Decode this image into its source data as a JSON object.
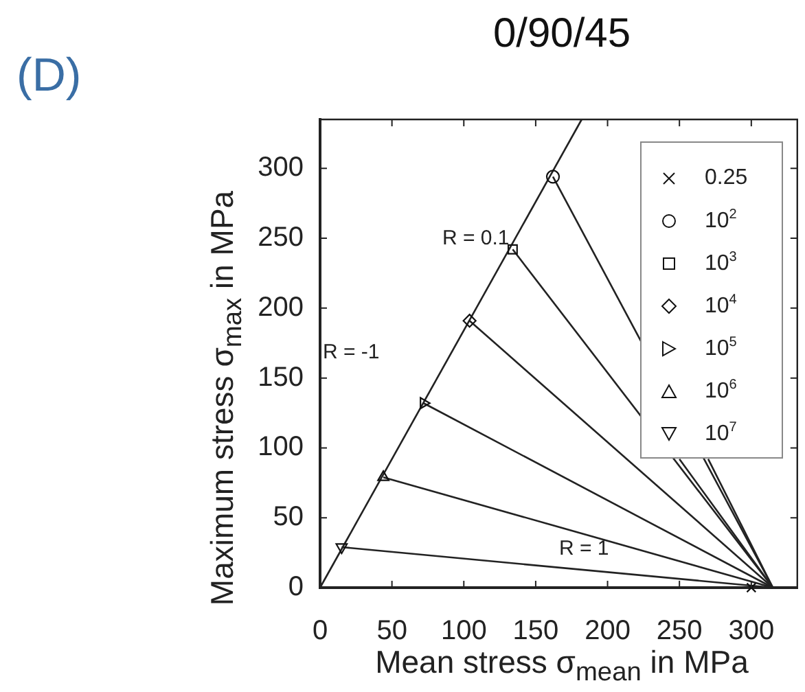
{
  "chart_data": {
    "type": "line",
    "title": "0/90/45",
    "xlabel": "Mean stress σ$_{mean}$ in MPa",
    "ylabel": "Maximum stress σ$_{max}$ in MPa",
    "xlim": [
      0,
      332
    ],
    "ylim": [
      0,
      335
    ],
    "xticks": [
      0,
      50,
      100,
      150,
      200,
      250,
      300
    ],
    "yticks": [
      0,
      50,
      100,
      150,
      200,
      250,
      300
    ],
    "grid": false,
    "legend": "top right",
    "annotations": [
      "(D)",
      "R = 0.1",
      "R = -1",
      "R = 1"
    ],
    "series": [
      {
        "type": "line",
        "color": "#222222",
        "marker": "none",
        "x": [
          0,
          182
        ],
        "values": [
          0,
          335
        ]
      },
      {
        "type": "line",
        "color": "#222222",
        "marker": "none",
        "x": [
          162,
          315
        ],
        "values": [
          294,
          0
        ]
      },
      {
        "type": "line",
        "color": "#222222",
        "marker": "none",
        "x": [
          134,
          315
        ],
        "values": [
          242,
          0
        ]
      },
      {
        "type": "line",
        "color": "#222222",
        "marker": "none",
        "x": [
          104,
          315
        ],
        "values": [
          191,
          0
        ]
      },
      {
        "type": "line",
        "color": "#222222",
        "marker": "none",
        "x": [
          72,
          315
        ],
        "values": [
          132,
          0
        ]
      },
      {
        "type": "line",
        "color": "#222222",
        "marker": "none",
        "x": [
          44,
          315
        ],
        "values": [
          79,
          0
        ]
      },
      {
        "type": "line",
        "color": "#222222",
        "marker": "none",
        "x": [
          15,
          315
        ],
        "values": [
          29,
          0
        ]
      },
      {
        "type": "line",
        "color": "#222222",
        "marker": "none",
        "x": [
          250,
          315
        ],
        "values": [
          92,
          0
        ]
      },
      {
        "type": "line",
        "color": "#222222",
        "marker": "none",
        "x": [
          270,
          315
        ],
        "values": [
          92,
          0
        ]
      },
      {
        "type": "scatter",
        "name": "0.25",
        "color": "#111111",
        "marker": "cross",
        "x": [
          300
        ],
        "values": [
          0
        ]
      },
      {
        "type": "scatter",
        "name": "10$^{2}$",
        "color": "#111111",
        "marker": "circle",
        "x": [
          162
        ],
        "values": [
          294
        ]
      },
      {
        "type": "scatter",
        "name": "10$^{3}$",
        "color": "#111111",
        "marker": "square",
        "x": [
          134
        ],
        "values": [
          242
        ]
      },
      {
        "type": "scatter",
        "name": "10$^{4}$",
        "color": "#111111",
        "marker": "diamond",
        "x": [
          104
        ],
        "values": [
          191
        ]
      },
      {
        "type": "scatter",
        "name": "10$^{5}$",
        "color": "#111111",
        "marker": "triangle-right",
        "x": [
          72
        ],
        "values": [
          132
        ]
      },
      {
        "type": "scatter",
        "name": "10$^{6}$",
        "color": "#111111",
        "marker": "triangle",
        "x": [
          44
        ],
        "values": [
          79
        ]
      },
      {
        "type": "scatter",
        "name": "10$^{7}$",
        "color": "#111111",
        "marker": "triangle-down",
        "x": [
          15
        ],
        "values": [
          29
        ]
      }
    ]
  }
}
